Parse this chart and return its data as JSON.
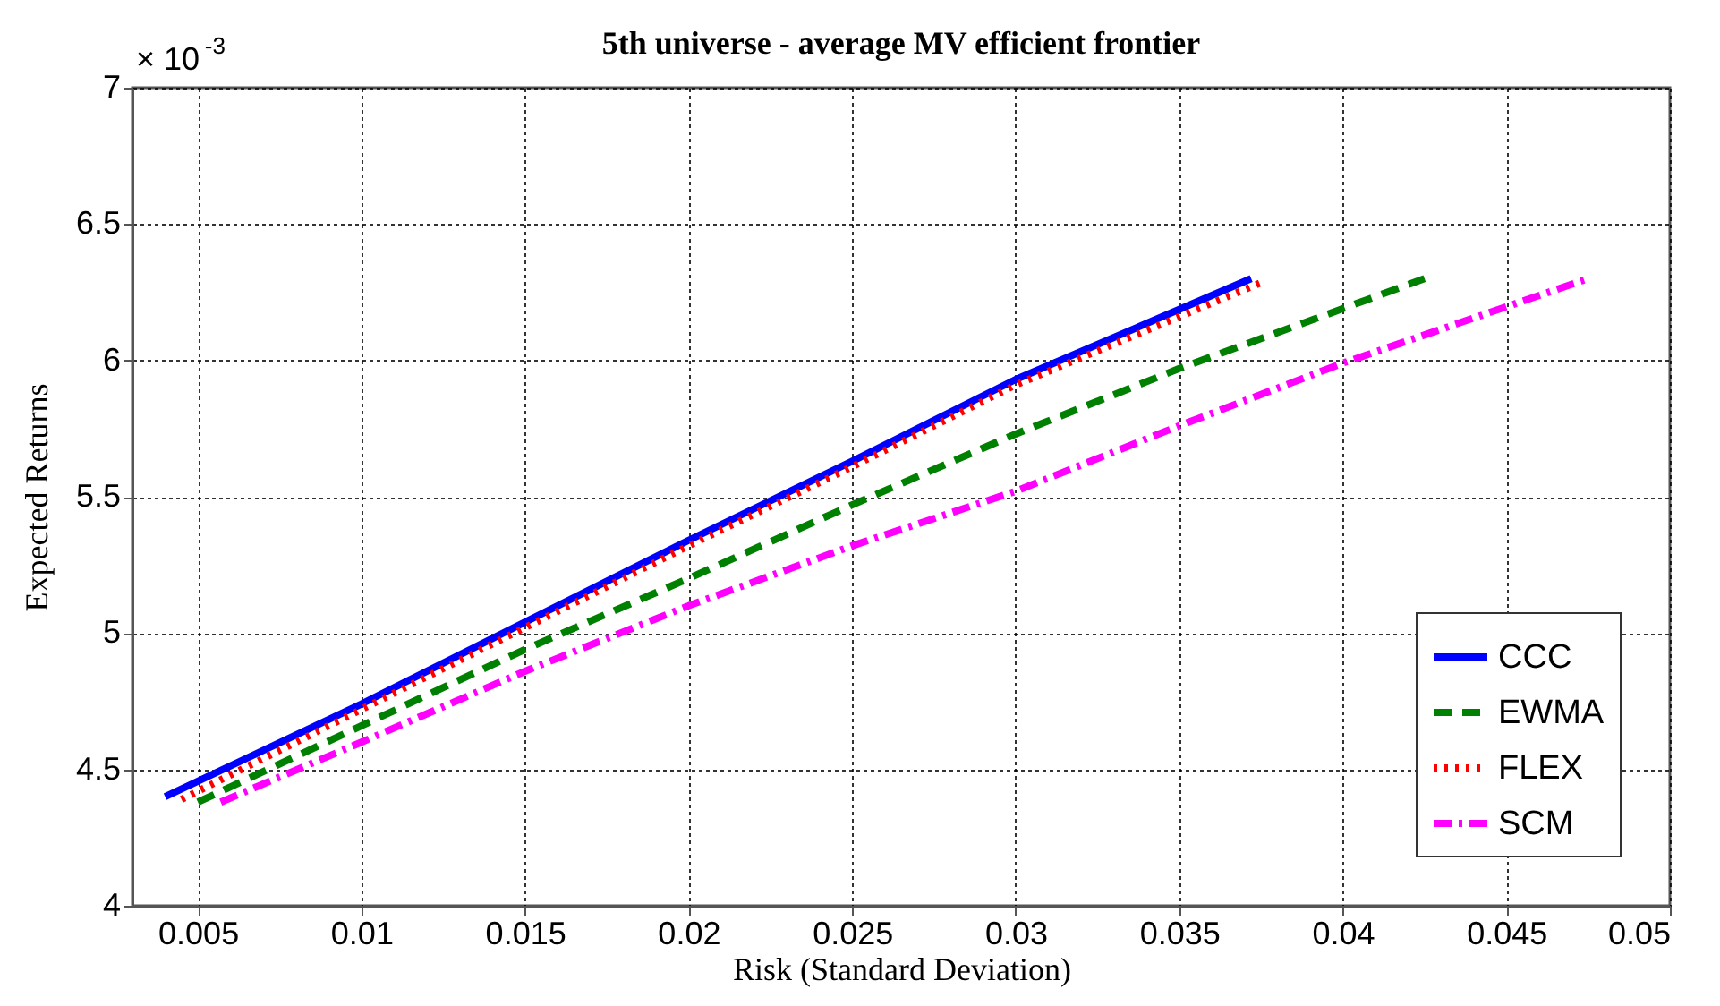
{
  "chart_data": {
    "type": "line",
    "title": "5th universe - average MV efficient frontier",
    "xlabel": "Risk (Standard Deviation)",
    "ylabel": "Expected Returns",
    "annotations": [
      "× 10$^{-3}$"
    ],
    "xlim": [
      0.003,
      0.05
    ],
    "xticks": [
      0.005,
      0.01,
      0.015,
      0.02,
      0.025,
      0.03,
      0.035,
      0.04,
      0.045,
      0.05
    ],
    "ylim": [
      4,
      7
    ],
    "yticks": [
      4,
      4.5,
      5,
      5.5,
      6,
      6.5,
      7
    ],
    "grid": true,
    "legend": "bottom right",
    "series": [
      {
        "name": "CCC",
        "color": "#0000ff",
        "line_style": "solid",
        "x": [
          0.004,
          0.01,
          0.015,
          0.02,
          0.025,
          0.03,
          0.0372
        ],
        "values": [
          4.4,
          4.74,
          5.04,
          5.34,
          5.63,
          5.93,
          6.3
        ]
      },
      {
        "name": "EWMA",
        "color": "#008000",
        "line_style": "dashed",
        "x": [
          0.005,
          0.01,
          0.015,
          0.02,
          0.025,
          0.03,
          0.035,
          0.0425
        ],
        "values": [
          4.38,
          4.66,
          4.94,
          5.2,
          5.47,
          5.73,
          5.97,
          6.3
        ]
      },
      {
        "name": "FLEX",
        "color": "#ff0000",
        "line_style": "dotted",
        "x": [
          0.0045,
          0.01,
          0.015,
          0.02,
          0.025,
          0.03,
          0.0376
        ],
        "values": [
          4.39,
          4.72,
          5.02,
          5.32,
          5.61,
          5.91,
          6.29
        ]
      },
      {
        "name": "SCM",
        "color": "#ff00ff",
        "line_style": "dashdot",
        "x": [
          0.0057,
          0.01,
          0.015,
          0.02,
          0.025,
          0.03,
          0.035,
          0.04,
          0.0475
        ],
        "values": [
          4.38,
          4.6,
          4.86,
          5.1,
          5.32,
          5.52,
          5.76,
          5.99,
          6.3
        ]
      }
    ]
  }
}
